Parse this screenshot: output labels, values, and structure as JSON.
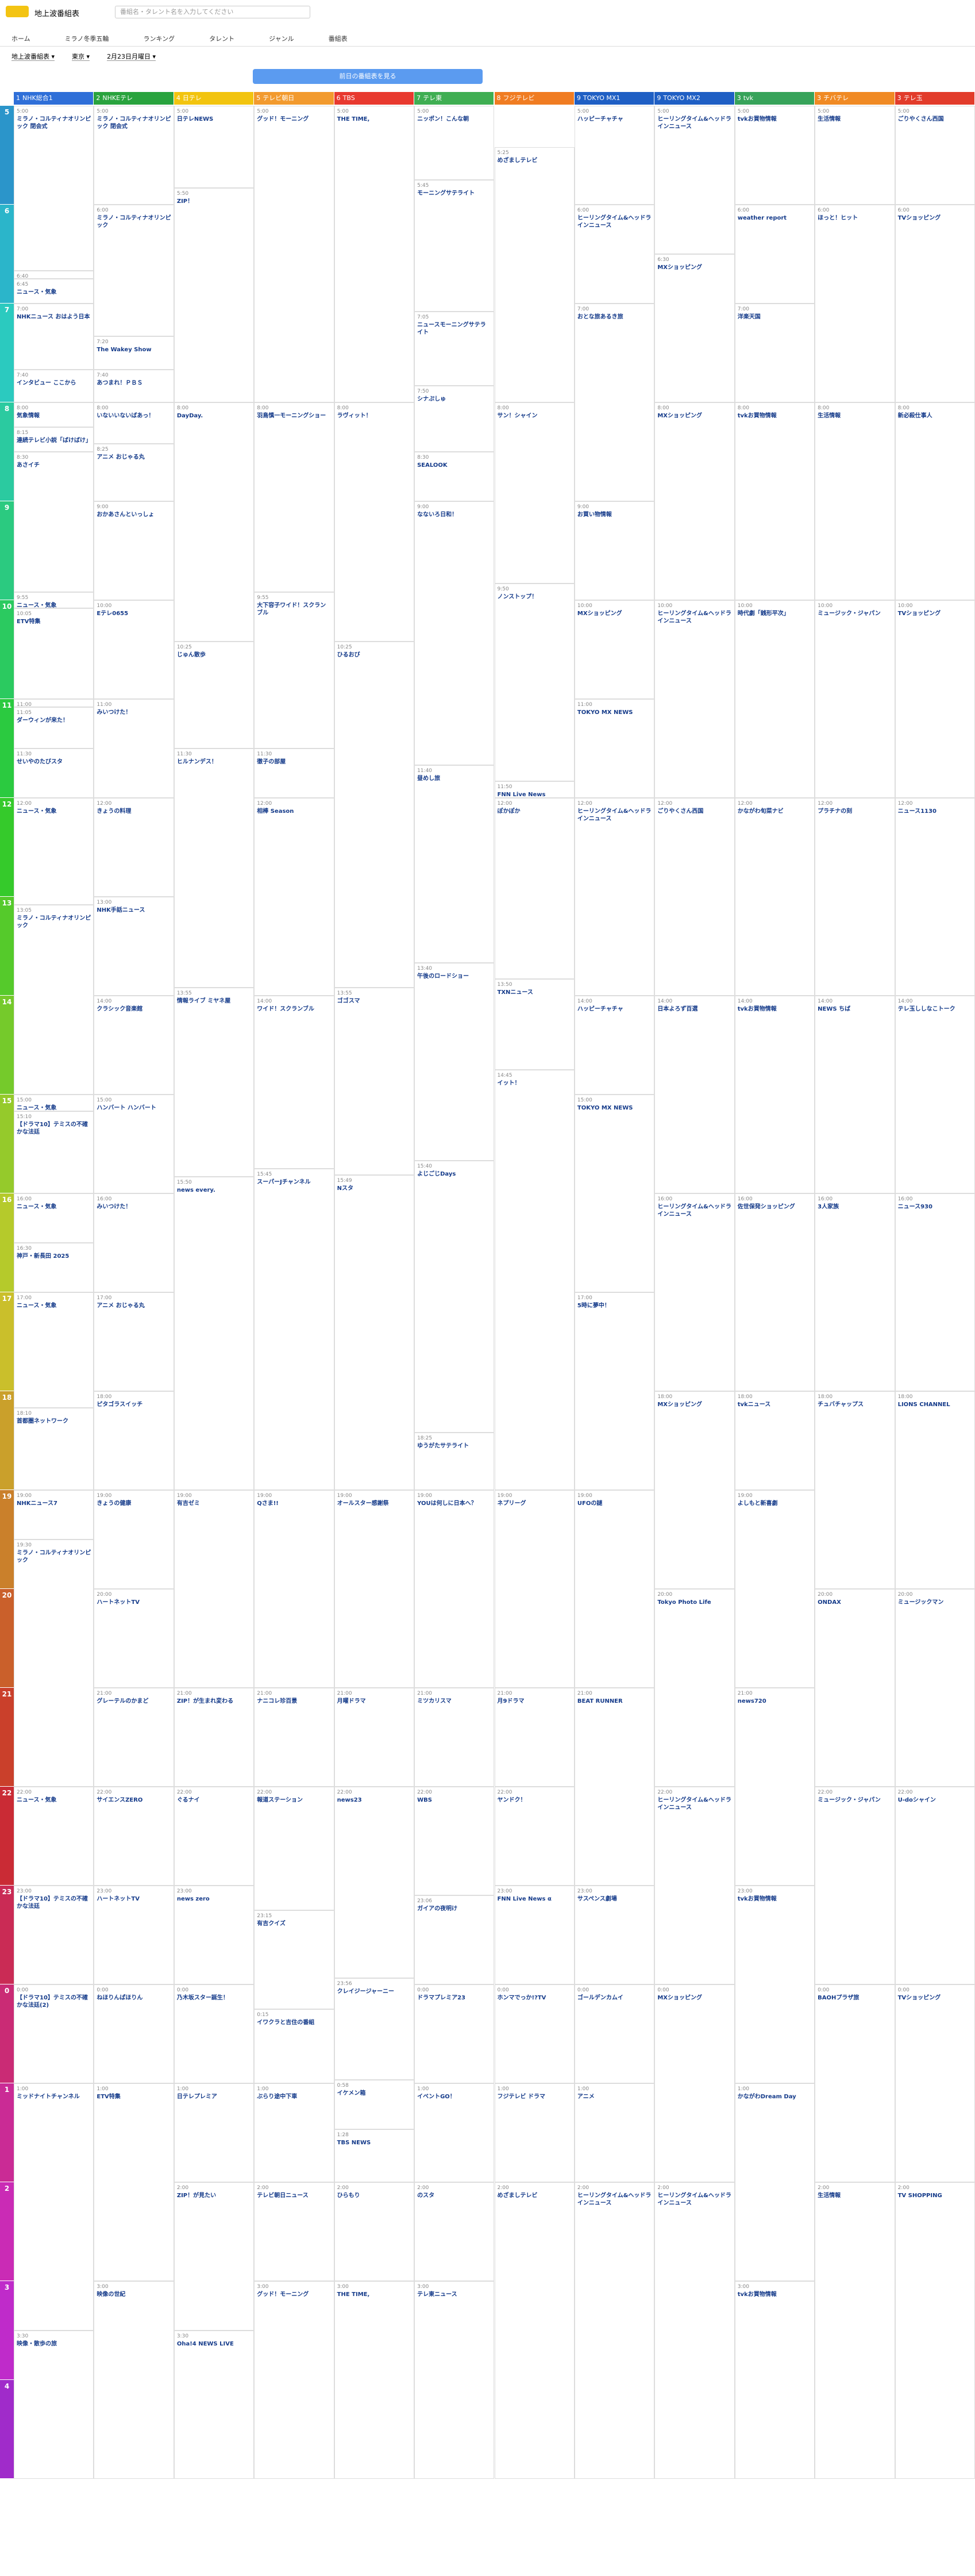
{
  "header": {
    "site": "地上波番組表",
    "search_placeholder": "番組名・タレント名を入力してください"
  },
  "nav": [
    "ホーム",
    "ミラノ冬季五輪",
    "ランキング",
    "タレント",
    "ジャンル",
    "番組表"
  ],
  "filters": [
    "地上波番組表 ▾",
    "東京 ▾",
    "2月23日月曜日 ▾"
  ],
  "prev_button": "前日の番組表を見る",
  "hours": [
    5,
    6,
    7,
    8,
    9,
    10,
    11,
    12,
    13,
    14,
    15,
    16,
    17,
    18,
    19,
    20,
    21,
    22,
    23,
    0,
    1,
    2,
    3,
    4
  ],
  "channels": [
    {
      "num": "1",
      "name": "NHK総合1",
      "color": "#2f6fd8",
      "programs": [
        {
          "time": "5:00",
          "title": "ミラノ・コルティナオリンピック 閉会式"
        },
        {
          "time": "6:40",
          "title": "気象情報"
        },
        {
          "time": "6:45",
          "title": "ニュース・気象"
        },
        {
          "time": "7:00",
          "title": "NHKニュース おはよう日本"
        },
        {
          "time": "7:40",
          "title": "インタビュー ここから"
        },
        {
          "time": "8:00",
          "title": "気象情報"
        },
        {
          "time": "8:15",
          "title": "連続テレビ小説「ばけばけ」"
        },
        {
          "time": "8:30",
          "title": "あさイチ"
        },
        {
          "time": "9:55",
          "title": "ニュース・気象"
        },
        {
          "time": "10:05",
          "title": "ETV特集"
        },
        {
          "time": "11:00",
          "title": "ニュース・気象"
        },
        {
          "time": "11:05",
          "title": "ダーウィンが来た！"
        },
        {
          "time": "11:30",
          "title": "せいやのたびスタ"
        },
        {
          "time": "12:00",
          "title": "ニュース・気象"
        },
        {
          "time": "13:05",
          "title": "ミラノ・コルティナオリンピック"
        },
        {
          "time": "15:00",
          "title": "ニュース・気象"
        },
        {
          "time": "15:10",
          "title": "【ドラマ10】テミスの不確かな法廷"
        },
        {
          "time": "16:00",
          "title": "ニュース・気象"
        },
        {
          "time": "16:30",
          "title": "神戸・新長田 2025"
        },
        {
          "time": "17:00",
          "title": "ニュース・気象"
        },
        {
          "time": "18:10",
          "title": "首都圏ネットワーク"
        },
        {
          "time": "19:00",
          "title": "NHKニュース7"
        },
        {
          "time": "19:30",
          "title": "ミラノ・コルティナオリンピック"
        },
        {
          "time": "22:00",
          "title": "ニュース・気象"
        },
        {
          "time": "23:00",
          "title": "【ドラマ10】テミスの不確かな法廷"
        },
        {
          "time": "0:00",
          "title": "【ドラマ10】テミスの不確かな法廷(2)"
        },
        {
          "time": "1:00",
          "title": "ミッドナイトチャンネル"
        },
        {
          "time": "3:30",
          "title": "映像・散歩の旅"
        }
      ]
    },
    {
      "num": "2",
      "name": "NHKEテレ",
      "color": "#29a33e",
      "programs": [
        {
          "time": "5:00",
          "title": "ミラノ・コルティナオリンピック 閉会式"
        },
        {
          "time": "6:00",
          "title": "ミラノ・コルティナオリンピック"
        },
        {
          "time": "7:20",
          "title": "The Wakey Show"
        },
        {
          "time": "7:40",
          "title": "あつまれ！ＰＢＳ"
        },
        {
          "time": "8:00",
          "title": "いないいないばあっ！"
        },
        {
          "time": "8:25",
          "title": "アニメ おじゃる丸"
        },
        {
          "time": "9:00",
          "title": "おかあさんといっしょ"
        },
        {
          "time": "10:00",
          "title": "Eテレ0655"
        },
        {
          "time": "11:00",
          "title": "みいつけた！"
        },
        {
          "time": "12:00",
          "title": "きょうの料理"
        },
        {
          "time": "13:00",
          "title": "NHK手話ニュース"
        },
        {
          "time": "14:00",
          "title": "クラシック音楽館"
        },
        {
          "time": "15:00",
          "title": "ハンバート ハンバート"
        },
        {
          "time": "16:00",
          "title": "みいつけた！"
        },
        {
          "time": "17:00",
          "title": "アニメ おじゃる丸"
        },
        {
          "time": "18:00",
          "title": "ピタゴラスイッチ"
        },
        {
          "time": "19:00",
          "title": "きょうの健康"
        },
        {
          "time": "20:00",
          "title": "ハートネットTV"
        },
        {
          "time": "21:00",
          "title": "グレーテルのかまど"
        },
        {
          "time": "22:00",
          "title": "サイエンスZERO"
        },
        {
          "time": "23:00",
          "title": "ハートネットTV"
        },
        {
          "time": "0:00",
          "title": "ねほりんぱほりん"
        },
        {
          "time": "1:00",
          "title": "ETV特集"
        },
        {
          "time": "3:00",
          "title": "映像の世紀"
        }
      ]
    },
    {
      "num": "4",
      "name": "日テレ",
      "color": "#f2c40f",
      "programs": [
        {
          "time": "5:00",
          "title": "日テレNEWS"
        },
        {
          "time": "5:50",
          "title": "ZIP！"
        },
        {
          "time": "8:00",
          "title": "DayDay."
        },
        {
          "time": "10:25",
          "title": "じゅん散歩"
        },
        {
          "time": "11:30",
          "title": "ヒルナンデス！"
        },
        {
          "time": "13:55",
          "title": "情報ライブ ミヤネ屋"
        },
        {
          "time": "15:50",
          "title": "news every."
        },
        {
          "time": "19:00",
          "title": "有吉ゼミ"
        },
        {
          "time": "21:00",
          "title": "ZIP！が生まれ変わる"
        },
        {
          "time": "22:00",
          "title": "ぐるナイ"
        },
        {
          "time": "23:00",
          "title": "news zero"
        },
        {
          "time": "0:00",
          "title": "乃木坂スター誕生！"
        },
        {
          "time": "1:00",
          "title": "日テレプレミア"
        },
        {
          "time": "2:00",
          "title": "ZIP！が見たい"
        },
        {
          "time": "3:30",
          "title": "Oha!4 NEWS LIVE"
        }
      ]
    },
    {
      "num": "5",
      "name": "テレビ朝日",
      "color": "#f29a2e",
      "programs": [
        {
          "time": "5:00",
          "title": "グッド！モーニング"
        },
        {
          "time": "8:00",
          "title": "羽鳥慎一モーニングショー"
        },
        {
          "time": "9:55",
          "title": "大下容子ワイド！スクランブル"
        },
        {
          "time": "11:30",
          "title": "徹子の部屋"
        },
        {
          "time": "12:00",
          "title": "相棒 Season"
        },
        {
          "time": "14:00",
          "title": "ワイド！スクランブル"
        },
        {
          "time": "15:45",
          "title": "スーパーJチャンネル"
        },
        {
          "time": "19:00",
          "title": "Qさま!!"
        },
        {
          "time": "21:00",
          "title": "ナニコレ珍百景"
        },
        {
          "time": "22:00",
          "title": "報道ステーション"
        },
        {
          "time": "23:15",
          "title": "有吉クイズ"
        },
        {
          "time": "0:15",
          "title": "イワクラと吉住の番組"
        },
        {
          "time": "1:00",
          "title": "ぶらり途中下車"
        },
        {
          "time": "2:00",
          "title": "テレビ朝日ニュース"
        },
        {
          "time": "3:00",
          "title": "グッド！モーニング"
        }
      ]
    },
    {
      "num": "6",
      "name": "TBS",
      "color": "#e8392f",
      "programs": [
        {
          "time": "5:00",
          "title": "THE TIME,"
        },
        {
          "time": "8:00",
          "title": "ラヴィット！"
        },
        {
          "time": "10:25",
          "title": "ひるおび"
        },
        {
          "time": "13:55",
          "title": "ゴゴスマ"
        },
        {
          "time": "15:49",
          "title": "Nスタ"
        },
        {
          "time": "19:00",
          "title": "オールスター感謝祭"
        },
        {
          "time": "21:00",
          "title": "月曜ドラマ"
        },
        {
          "time": "22:00",
          "title": "news23"
        },
        {
          "time": "23:56",
          "title": "クレイジージャーニー"
        },
        {
          "time": "0:58",
          "title": "イケメン箱"
        },
        {
          "time": "1:28",
          "title": "TBS NEWS"
        },
        {
          "time": "2:00",
          "title": "ひらもり"
        },
        {
          "time": "3:00",
          "title": "THE TIME,"
        }
      ]
    },
    {
      "num": "7",
      "name": "テレ東",
      "color": "#3fae52",
      "programs": [
        {
          "time": "5:00",
          "title": "ニッポン！こんな朝"
        },
        {
          "time": "5:45",
          "title": "モーニングサテライト"
        },
        {
          "time": "7:05",
          "title": "ニュースモーニングサテライト"
        },
        {
          "time": "7:50",
          "title": "シナぷしゅ"
        },
        {
          "time": "8:30",
          "title": "SEALOOK"
        },
        {
          "time": "9:00",
          "title": "なないろ日和！"
        },
        {
          "time": "11:40",
          "title": "昼めし旅"
        },
        {
          "time": "13:40",
          "title": "午後のロードショー"
        },
        {
          "time": "15:40",
          "title": "よじごじDays"
        },
        {
          "time": "18:25",
          "title": "ゆうがたサテライト"
        },
        {
          "time": "19:00",
          "title": "YOUは何しに日本へ？"
        },
        {
          "time": "21:00",
          "title": "ミツカリスマ"
        },
        {
          "time": "22:00",
          "title": "WBS"
        },
        {
          "time": "23:06",
          "title": "ガイアの夜明け"
        },
        {
          "time": "0:00",
          "title": "ドラマプレミア23"
        },
        {
          "time": "1:00",
          "title": "イベントGO！"
        },
        {
          "time": "2:00",
          "title": "のスタ"
        },
        {
          "time": "3:00",
          "title": "テレ東ニュース"
        }
      ]
    },
    {
      "num": "8",
      "name": "フジテレビ",
      "color": "#f07c22",
      "programs": [
        {
          "time": "5:25",
          "title": "めざましテレビ"
        },
        {
          "time": "8:00",
          "title": "サン！シャイン"
        },
        {
          "time": "9:50",
          "title": "ノンストップ！"
        },
        {
          "time": "11:50",
          "title": "FNN Live News"
        },
        {
          "time": "12:00",
          "title": "ぽかぽか"
        },
        {
          "time": "13:50",
          "title": "TXNニュース"
        },
        {
          "time": "14:45",
          "title": "イット！"
        },
        {
          "time": "19:00",
          "title": "ネプリーグ"
        },
        {
          "time": "21:00",
          "title": "月9ドラマ"
        },
        {
          "time": "22:00",
          "title": "ヤンドク！"
        },
        {
          "time": "23:00",
          "title": "FNN Live News α"
        },
        {
          "time": "0:00",
          "title": "ホンマでっか!?TV"
        },
        {
          "time": "1:00",
          "title": "フジテレビ ドラマ"
        },
        {
          "time": "2:00",
          "title": "めざましテレビ"
        }
      ]
    },
    {
      "num": "9",
      "name": "TOKYO MX1",
      "color": "#1f5fc4",
      "programs": [
        {
          "time": "5:00",
          "title": "ハッピーチャチャ"
        },
        {
          "time": "6:00",
          "title": "ヒーリングタイム&ヘッドラインニュース"
        },
        {
          "time": "7:00",
          "title": "おとな旅あるき旅"
        },
        {
          "time": "9:00",
          "title": "お買い物情報"
        },
        {
          "time": "10:00",
          "title": "MXショッピング"
        },
        {
          "time": "11:00",
          "title": "TOKYO MX NEWS"
        },
        {
          "time": "12:00",
          "title": "ヒーリングタイム&ヘッドラインニュース"
        },
        {
          "time": "14:00",
          "title": "ハッピーチャチャ"
        },
        {
          "time": "15:00",
          "title": "TOKYO MX NEWS"
        },
        {
          "time": "17:00",
          "title": "5時に夢中！"
        },
        {
          "time": "19:00",
          "title": "UFOの謎"
        },
        {
          "time": "21:00",
          "title": "BEAT RUNNER"
        },
        {
          "time": "23:00",
          "title": "サスペンス劇場"
        },
        {
          "time": "0:00",
          "title": "ゴールデンカムイ"
        },
        {
          "time": "1:00",
          "title": "アニメ"
        },
        {
          "time": "2:00",
          "title": "ヒーリングタイム&ヘッドラインニュース"
        }
      ]
    },
    {
      "num": "9",
      "name": "TOKYO MX2",
      "color": "#1f5fc4",
      "programs": [
        {
          "time": "5:00",
          "title": "ヒーリングタイム&ヘッドラインニュース"
        },
        {
          "time": "6:30",
          "title": "MXショッピング"
        },
        {
          "time": "8:00",
          "title": "MXショッピング"
        },
        {
          "time": "10:00",
          "title": "ヒーリングタイム&ヘッドラインニュース"
        },
        {
          "time": "12:00",
          "title": "ごりやくさん西国"
        },
        {
          "time": "14:00",
          "title": "日本よろず百選"
        },
        {
          "time": "16:00",
          "title": "ヒーリングタイム&ヘッドラインニュース"
        },
        {
          "time": "18:00",
          "title": "MXショッピング"
        },
        {
          "time": "20:00",
          "title": "Tokyo Photo Life"
        },
        {
          "time": "22:00",
          "title": "ヒーリングタイム&ヘッドラインニュース"
        },
        {
          "time": "0:00",
          "title": "MXショッピング"
        },
        {
          "time": "2:00",
          "title": "ヒーリングタイム&ヘッドラインニュース"
        }
      ]
    },
    {
      "num": "3",
      "name": "tvk",
      "color": "#37a35a",
      "programs": [
        {
          "time": "5:00",
          "title": "tvkお買物情報"
        },
        {
          "time": "6:00",
          "title": "weather report"
        },
        {
          "time": "7:00",
          "title": "洋楽天国"
        },
        {
          "time": "8:00",
          "title": "tvkお買物情報"
        },
        {
          "time": "10:00",
          "title": "時代劇「銭形平次」"
        },
        {
          "time": "12:00",
          "title": "かながわ旬菜ナビ"
        },
        {
          "time": "14:00",
          "title": "tvkお買物情報"
        },
        {
          "time": "16:00",
          "title": "佐世保発ショッピング"
        },
        {
          "time": "18:00",
          "title": "tvkニュース"
        },
        {
          "time": "19:00",
          "title": "よしもと新喜劇"
        },
        {
          "time": "21:00",
          "title": "news720"
        },
        {
          "time": "23:00",
          "title": "tvkお買物情報"
        },
        {
          "time": "1:00",
          "title": "かながわDream Day"
        },
        {
          "time": "3:00",
          "title": "tvkお買物情報"
        }
      ]
    },
    {
      "num": "3",
      "name": "チバテレ",
      "color": "#f08a24",
      "programs": [
        {
          "time": "5:00",
          "title": "生活情報"
        },
        {
          "time": "6:00",
          "title": "ほっと！ヒット"
        },
        {
          "time": "8:00",
          "title": "生活情報"
        },
        {
          "time": "10:00",
          "title": "ミュージック・ジャパン"
        },
        {
          "time": "12:00",
          "title": "プラチナの刻"
        },
        {
          "time": "14:00",
          "title": "NEWS ちば"
        },
        {
          "time": "16:00",
          "title": "3人家族"
        },
        {
          "time": "18:00",
          "title": "チュバチャップス"
        },
        {
          "time": "20:00",
          "title": "ONDAX"
        },
        {
          "time": "22:00",
          "title": "ミュージック・ジャパン"
        },
        {
          "time": "0:00",
          "title": "BAOHプラザ旅"
        },
        {
          "time": "2:00",
          "title": "生活情報"
        }
      ]
    },
    {
      "num": "3",
      "name": "テレ玉",
      "color": "#e23c2b",
      "programs": [
        {
          "time": "5:00",
          "title": "ごりやくさん西国"
        },
        {
          "time": "6:00",
          "title": "TVショッピング"
        },
        {
          "time": "8:00",
          "title": "新必殺仕事人"
        },
        {
          "time": "10:00",
          "title": "TVショッピング"
        },
        {
          "time": "12:00",
          "title": "ニュース1130"
        },
        {
          "time": "14:00",
          "title": "テレ玉ししなこトーク"
        },
        {
          "time": "16:00",
          "title": "ニュース930"
        },
        {
          "time": "18:00",
          "title": "LIONS CHANNEL"
        },
        {
          "time": "20:00",
          "title": "ミュージックマン"
        },
        {
          "time": "22:00",
          "title": "U-doシャイン"
        },
        {
          "time": "0:00",
          "title": "TVショッピング"
        },
        {
          "time": "2:00",
          "title": "TV SHOPPING"
        }
      ]
    }
  ]
}
